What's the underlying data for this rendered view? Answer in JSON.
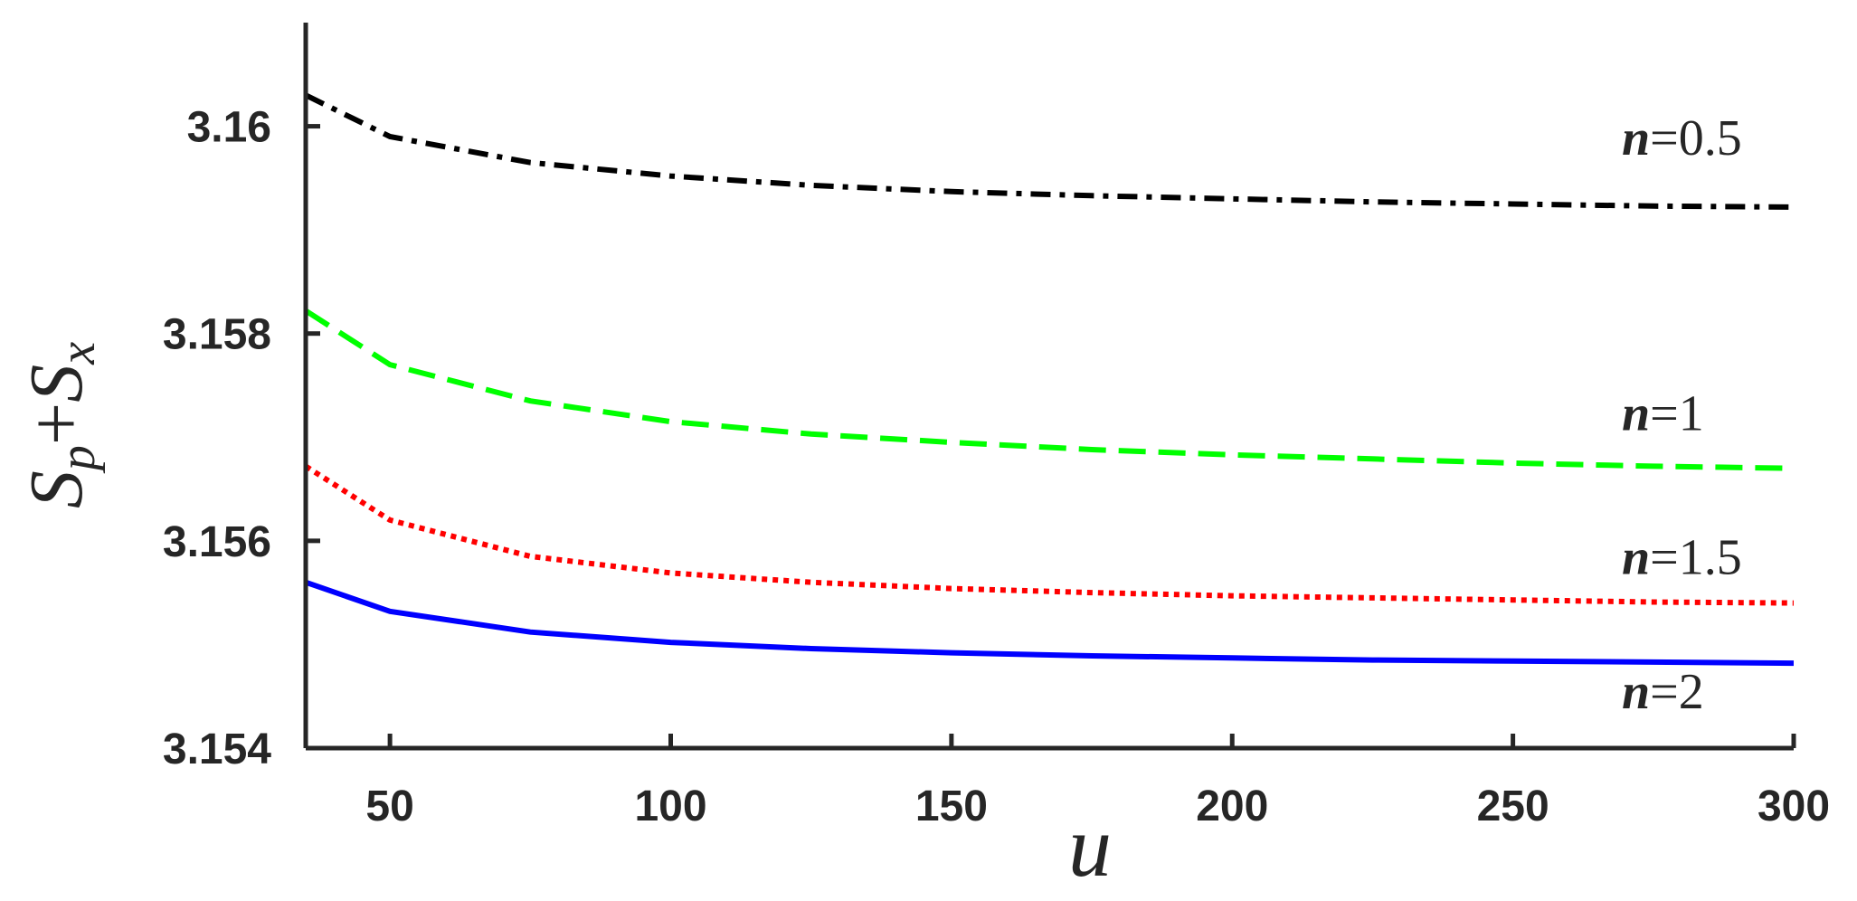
{
  "chart_data": {
    "type": "line",
    "xlabel": "u",
    "ylabel": "S_p + S_x",
    "ylabel_parts": {
      "s1": "S",
      "sub1": "p",
      "plus": "+",
      "s2": "S",
      "sub2": "x"
    },
    "xlim": [
      35,
      300
    ],
    "ylim": [
      3.154,
      3.161
    ],
    "xticks": [
      50,
      100,
      150,
      200,
      250,
      300
    ],
    "yticks": [
      3.154,
      3.156,
      3.158,
      3.16
    ],
    "ytick_labels": [
      "3.154",
      "3.156",
      "3.158",
      "3.16"
    ],
    "grid": false,
    "legend": "none",
    "series": [
      {
        "label_var": "n",
        "label_eq": "=",
        "label_val": "0.5",
        "color": "#000000",
        "dash": "dashdot",
        "x": [
          35,
          50,
          75,
          100,
          125,
          150,
          175,
          200,
          225,
          250,
          275,
          300
        ],
        "y": [
          3.1603,
          3.1599,
          3.15965,
          3.15952,
          3.15943,
          3.15937,
          3.15933,
          3.1593,
          3.15927,
          3.15925,
          3.15923,
          3.15922
        ]
      },
      {
        "label_var": "n",
        "label_eq": "=",
        "label_val": "1",
        "color": "#00ff00",
        "dash": "dashed",
        "x": [
          35,
          50,
          75,
          100,
          125,
          150,
          175,
          200,
          225,
          250,
          275,
          300
        ],
        "y": [
          3.15822,
          3.1577,
          3.15735,
          3.15715,
          3.15703,
          3.15695,
          3.15688,
          3.15683,
          3.15679,
          3.15675,
          3.15672,
          3.1567
        ]
      },
      {
        "label_var": "n",
        "label_eq": "=",
        "label_val": "1.5",
        "color": "#ff0000",
        "dash": "dotted",
        "x": [
          35,
          50,
          75,
          100,
          125,
          150,
          175,
          200,
          225,
          250,
          275,
          300
        ],
        "y": [
          3.15672,
          3.1562,
          3.15585,
          3.15569,
          3.1556,
          3.15554,
          3.1555,
          3.15547,
          3.15545,
          3.15543,
          3.15541,
          3.1554
        ]
      },
      {
        "label_var": "n",
        "label_eq": "=",
        "label_val": "2",
        "color": "#0000ff",
        "dash": "solid",
        "x": [
          35,
          50,
          75,
          100,
          125,
          150,
          175,
          200,
          225,
          250,
          275,
          300
        ],
        "y": [
          3.1556,
          3.15532,
          3.15512,
          3.15502,
          3.15496,
          3.15492,
          3.15489,
          3.15487,
          3.15485,
          3.15484,
          3.15483,
          3.15482
        ]
      }
    ]
  }
}
